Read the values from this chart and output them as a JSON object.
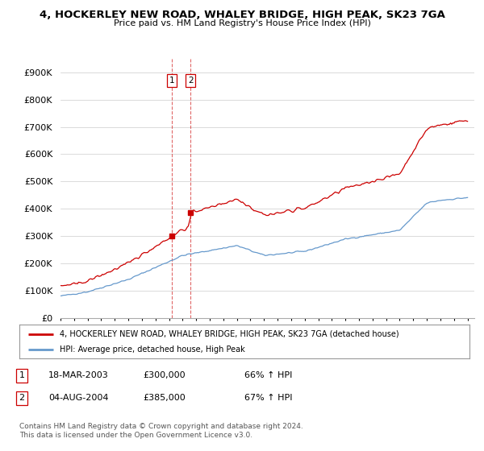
{
  "title1": "4, HOCKERLEY NEW ROAD, WHALEY BRIDGE, HIGH PEAK, SK23 7GA",
  "title2": "Price paid vs. HM Land Registry's House Price Index (HPI)",
  "ylim": [
    0,
    950000
  ],
  "yticks": [
    0,
    100000,
    200000,
    300000,
    400000,
    500000,
    600000,
    700000,
    800000,
    900000
  ],
  "ytick_labels": [
    "£0",
    "£100K",
    "£200K",
    "£300K",
    "£400K",
    "£500K",
    "£600K",
    "£700K",
    "£800K",
    "£900K"
  ],
  "hpi_color": "#6699cc",
  "price_color": "#cc0000",
  "sale1_date": 2003.21,
  "sale1_price": 300000,
  "sale2_date": 2004.58,
  "sale2_price": 385000,
  "legend_house": "4, HOCKERLEY NEW ROAD, WHALEY BRIDGE, HIGH PEAK, SK23 7GA (detached house)",
  "legend_hpi": "HPI: Average price, detached house, High Peak",
  "table_row1": [
    "1",
    "18-MAR-2003",
    "£300,000",
    "66% ↑ HPI"
  ],
  "table_row2": [
    "2",
    "04-AUG-2004",
    "£385,000",
    "67% ↑ HPI"
  ],
  "footer": "Contains HM Land Registry data © Crown copyright and database right 2024.\nThis data is licensed under the Open Government Licence v3.0.",
  "background_color": "#ffffff",
  "grid_color": "#cccccc",
  "xlim_start": 1995,
  "xlim_end": 2025.5
}
